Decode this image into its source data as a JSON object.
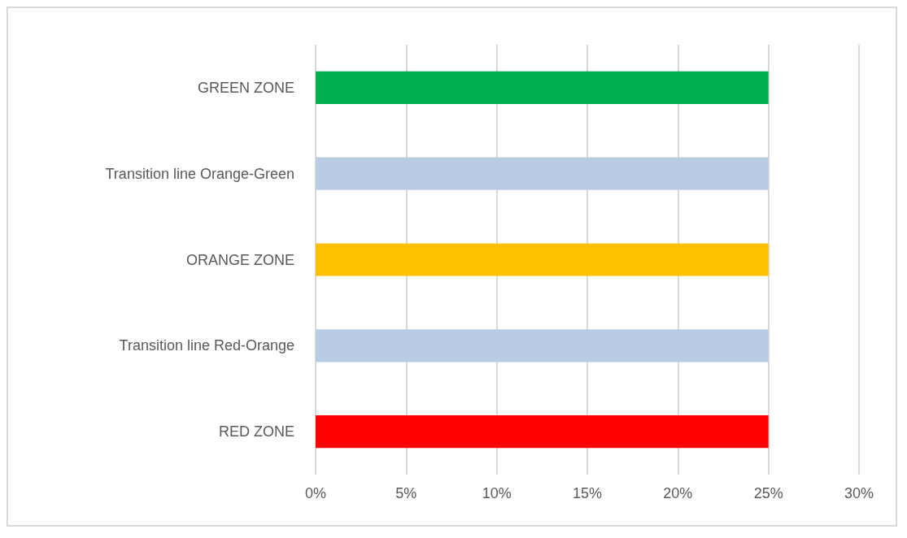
{
  "chart_data": {
    "type": "bar",
    "orientation": "horizontal",
    "categories": [
      "GREEN ZONE",
      "Transition line Orange-Green",
      "ORANGE ZONE",
      "Transition line Red-Orange",
      "RED ZONE"
    ],
    "values": [
      25,
      25,
      25,
      25,
      25
    ],
    "colors": [
      "#00b050",
      "#b8cce4",
      "#ffc000",
      "#b8cce4",
      "#ff0000"
    ],
    "xlim": [
      0,
      30
    ],
    "xticks": [
      {
        "value": 0,
        "label": "0%"
      },
      {
        "value": 5,
        "label": "5%"
      },
      {
        "value": 10,
        "label": "10%"
      },
      {
        "value": 15,
        "label": "15%"
      },
      {
        "value": 20,
        "label": "20%"
      },
      {
        "value": 25,
        "label": "25%"
      },
      {
        "value": 30,
        "label": "30%"
      }
    ],
    "grid": "x"
  }
}
